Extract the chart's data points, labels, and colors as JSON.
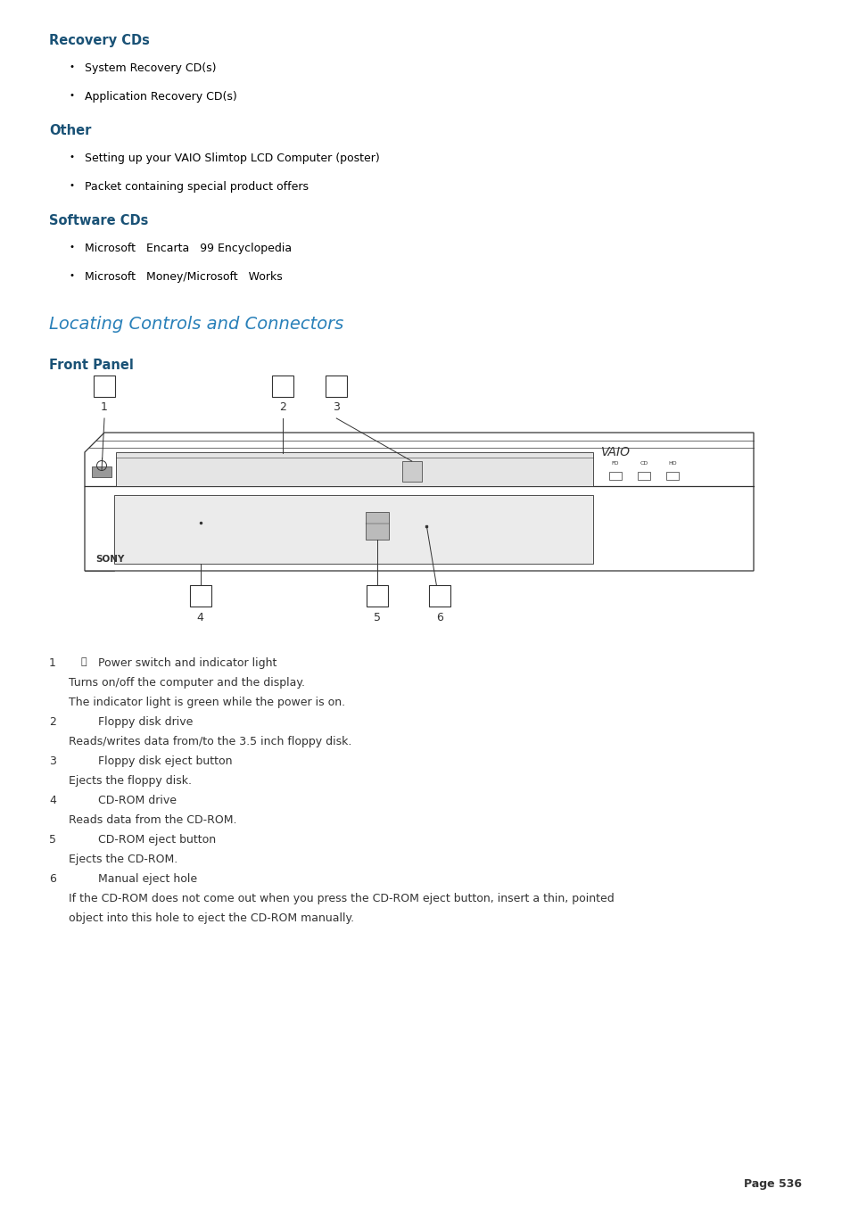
{
  "bg_color": "#ffffff",
  "text_color": "#000000",
  "heading_color": "#1a5276",
  "title_large_color": "#2980b9",
  "page_width": 9.54,
  "page_height": 13.51,
  "content": {
    "section1_heading": "Recovery CDs",
    "section1_bullets": [
      "System Recovery CD(s)",
      "Application Recovery CD(s)"
    ],
    "section2_heading": "Other",
    "section2_bullets": [
      "Setting up your VAIO Slimtop LCD Computer (poster)",
      "Packet containing special product offers"
    ],
    "section3_heading": "Software CDs",
    "section3_bullets": [
      "Microsoft   Encarta   99 Encyclopedia",
      "Microsoft   Money/Microsoft   Works"
    ],
    "main_title": "Locating Controls and Connectors",
    "sub_heading": "Front Panel",
    "items": [
      {
        "num": "1",
        "power_sym": true,
        "label": "Power switch and indicator light",
        "desc1": "Turns on/off the computer and the display.",
        "desc2": "The indicator light is green while the power is on."
      },
      {
        "num": "2",
        "power_sym": false,
        "label": "Floppy disk drive",
        "desc1": "Reads/writes data from/to the 3.5 inch floppy disk.",
        "desc2": ""
      },
      {
        "num": "3",
        "power_sym": false,
        "label": "Floppy disk eject button",
        "desc1": "Ejects the floppy disk.",
        "desc2": ""
      },
      {
        "num": "4",
        "power_sym": false,
        "label": "CD-ROM drive",
        "desc1": "Reads data from the CD-ROM.",
        "desc2": ""
      },
      {
        "num": "5",
        "power_sym": false,
        "label": "CD-ROM eject button",
        "desc1": "Ejects the CD-ROM.",
        "desc2": ""
      },
      {
        "num": "6",
        "power_sym": false,
        "label": "Manual eject hole",
        "desc1": "If the CD-ROM does not come out when you press the CD-ROM eject button, insert a thin, pointed",
        "desc2": "object into this hole to eject the CD-ROM manually."
      }
    ],
    "page_num": "Page 536"
  }
}
